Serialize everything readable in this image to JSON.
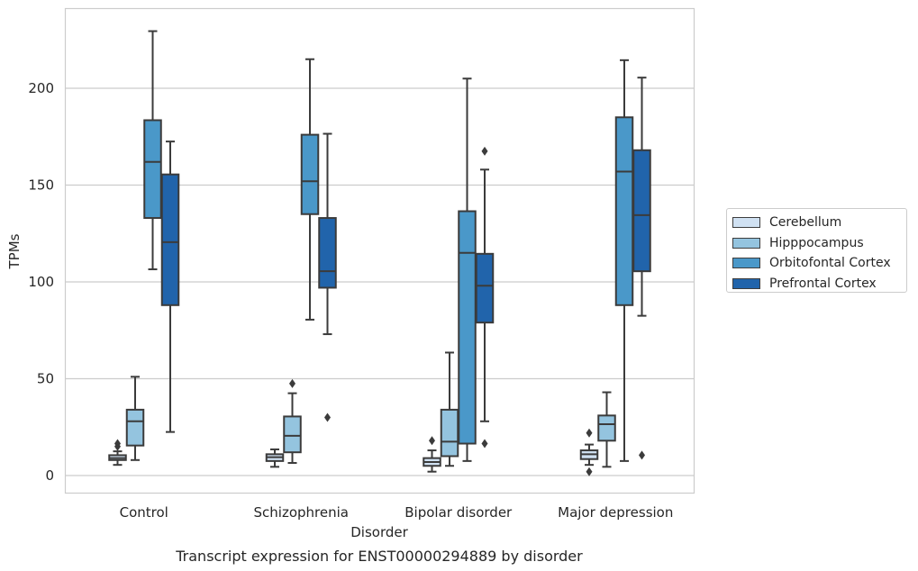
{
  "chart_data": {
    "type": "boxplot",
    "title": "Transcript expression for ENST00000294889 by disorder",
    "xlabel": "Disorder",
    "ylabel": "TPMs",
    "ylim": [
      -9,
      242
    ],
    "yticks": [
      0,
      50,
      100,
      150,
      200
    ],
    "grid": true,
    "legend_position": "right",
    "categories": [
      "Control",
      "Schizophrenia",
      "Bipolar disorder",
      "Major depression"
    ],
    "series": [
      {
        "name": "Cerebellum",
        "color": "#d0e1f2",
        "boxes": [
          {
            "whisker_low": 5.5,
            "q1": 8,
            "median": 9,
            "q3": 10.5,
            "whisker_high": 12.5,
            "outliers": [
              15,
              16.5
            ]
          },
          {
            "whisker_low": 4.5,
            "q1": 7.5,
            "median": 9.5,
            "q3": 11,
            "whisker_high": 13.5,
            "outliers": []
          },
          {
            "whisker_low": 2,
            "q1": 5,
            "median": 7,
            "q3": 9,
            "whisker_high": 13,
            "outliers": [
              18
            ]
          },
          {
            "whisker_low": 5.5,
            "q1": 8.5,
            "median": 11,
            "q3": 13,
            "whisker_high": 16,
            "outliers": [
              22,
              2
            ]
          }
        ]
      },
      {
        "name": "Hipppocampus",
        "color": "#94c4df",
        "boxes": [
          {
            "whisker_low": 8,
            "q1": 15.5,
            "median": 28,
            "q3": 34,
            "whisker_high": 51,
            "outliers": []
          },
          {
            "whisker_low": 6.5,
            "q1": 12,
            "median": 20.5,
            "q3": 30.5,
            "whisker_high": 42.5,
            "outliers": [
              47.5
            ]
          },
          {
            "whisker_low": 5,
            "q1": 10,
            "median": 17.5,
            "q3": 34,
            "whisker_high": 63.5,
            "outliers": []
          },
          {
            "whisker_low": 4.5,
            "q1": 18,
            "median": 26.5,
            "q3": 31,
            "whisker_high": 43,
            "outliers": []
          }
        ]
      },
      {
        "name": "Orbitofontal Cortex",
        "color": "#4a98c9",
        "boxes": [
          {
            "whisker_low": 106.5,
            "q1": 133,
            "median": 162,
            "q3": 183.5,
            "whisker_high": 229.5,
            "outliers": []
          },
          {
            "whisker_low": 80.5,
            "q1": 135,
            "median": 152,
            "q3": 176,
            "whisker_high": 215,
            "outliers": []
          },
          {
            "whisker_low": 7.5,
            "q1": 16.5,
            "median": 115,
            "q3": 136.5,
            "whisker_high": 205,
            "outliers": []
          },
          {
            "whisker_low": 7.5,
            "q1": 88,
            "median": 157,
            "q3": 185,
            "whisker_high": 214.5,
            "outliers": []
          }
        ]
      },
      {
        "name": "Prefrontal Cortex",
        "color": "#2164ab",
        "boxes": [
          {
            "whisker_low": 22.5,
            "q1": 88,
            "median": 120.5,
            "q3": 155.5,
            "whisker_high": 172.5,
            "outliers": []
          },
          {
            "whisker_low": 73,
            "q1": 97,
            "median": 105.5,
            "q3": 133,
            "whisker_high": 176.5,
            "outliers": [
              30
            ]
          },
          {
            "whisker_low": 28,
            "q1": 79,
            "median": 98,
            "q3": 114.5,
            "whisker_high": 158,
            "outliers": [
              167.5,
              16.5
            ]
          },
          {
            "whisker_low": 82.5,
            "q1": 105.5,
            "median": 134.5,
            "q3": 168,
            "whisker_high": 205.5,
            "outliers": [
              10.5
            ]
          }
        ]
      }
    ]
  }
}
